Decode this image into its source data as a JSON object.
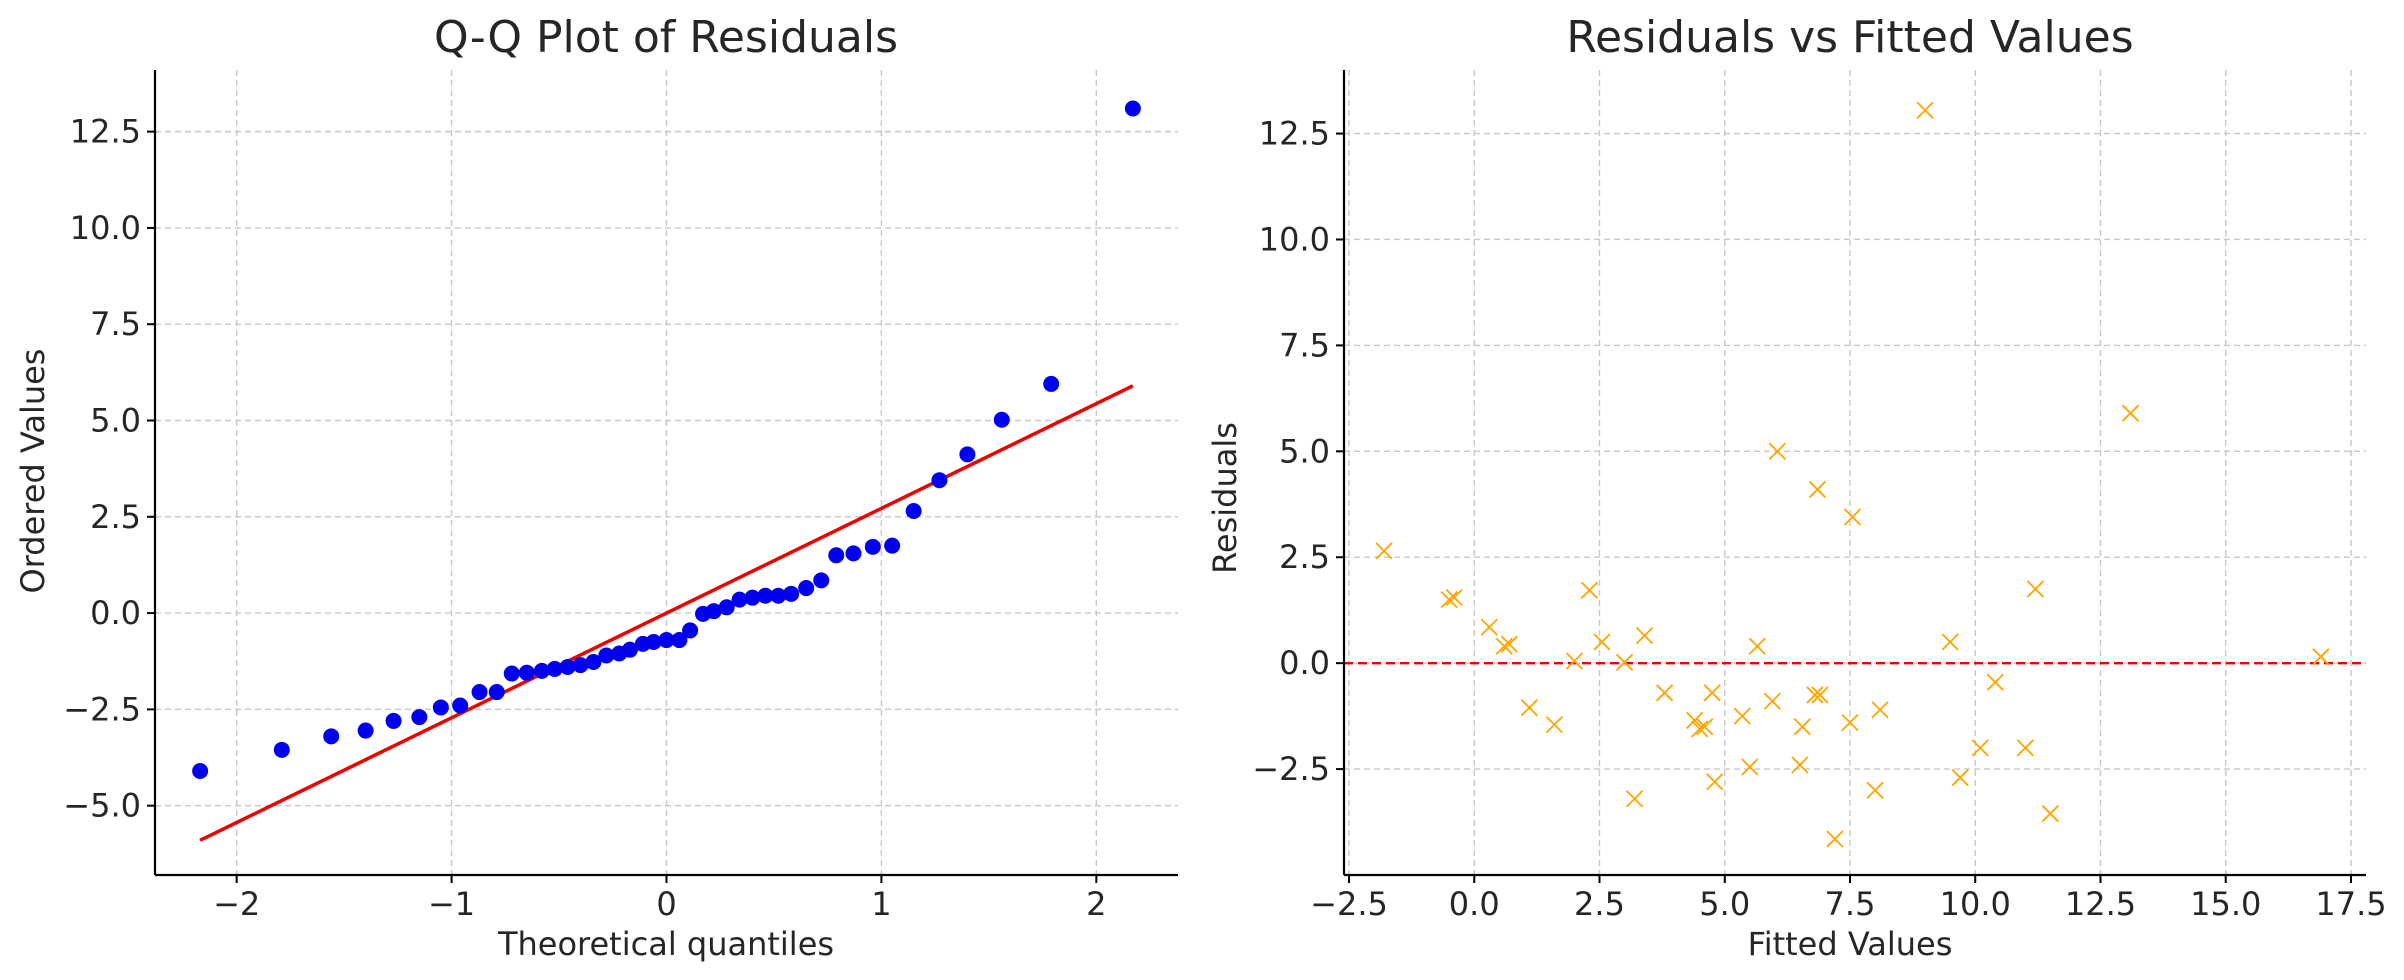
{
  "chart_data": [
    {
      "type": "scatter",
      "title": "Q-Q Plot of Residuals",
      "xlabel": "Theoretical quantiles",
      "ylabel": "Ordered Values",
      "xlim": [
        -2.38,
        2.38
      ],
      "ylim": [
        -6.8,
        14.1
      ],
      "grid": true,
      "x_ticks": [
        -2,
        -1,
        0,
        1,
        2
      ],
      "x_tick_labels": [
        "−2",
        "−1",
        "0",
        "1",
        "2"
      ],
      "y_ticks": [
        -5.0,
        -2.5,
        0.0,
        2.5,
        5.0,
        7.5,
        10.0,
        12.5
      ],
      "y_tick_labels": [
        "−5.0",
        "−2.5",
        "0.0",
        "2.5",
        "5.0",
        "7.5",
        "10.0",
        "12.5"
      ],
      "point_color": "#0000ee",
      "series": [
        {
          "marker": "circle",
          "points": [
            [
              -2.17,
              -4.1
            ],
            [
              -1.79,
              -3.55
            ],
            [
              -1.56,
              -3.2
            ],
            [
              -1.4,
              -3.05
            ],
            [
              -1.27,
              -2.8
            ],
            [
              -1.15,
              -2.7
            ],
            [
              -1.05,
              -2.45
            ],
            [
              -0.96,
              -2.4
            ],
            [
              -0.87,
              -2.05
            ],
            [
              -0.79,
              -2.05
            ],
            [
              -0.72,
              -1.57
            ],
            [
              -0.65,
              -1.55
            ],
            [
              -0.58,
              -1.5
            ],
            [
              -0.52,
              -1.45
            ],
            [
              -0.46,
              -1.4
            ],
            [
              -0.4,
              -1.35
            ],
            [
              -0.34,
              -1.27
            ],
            [
              -0.28,
              -1.1
            ],
            [
              -0.22,
              -1.05
            ],
            [
              -0.17,
              -0.95
            ],
            [
              -0.11,
              -0.8
            ],
            [
              -0.06,
              -0.75
            ],
            [
              0.0,
              -0.7
            ],
            [
              0.06,
              -0.7
            ],
            [
              0.11,
              -0.45
            ],
            [
              0.17,
              -0.02
            ],
            [
              0.22,
              0.05
            ],
            [
              0.28,
              0.15
            ],
            [
              0.34,
              0.35
            ],
            [
              0.4,
              0.4
            ],
            [
              0.46,
              0.45
            ],
            [
              0.52,
              0.45
            ],
            [
              0.58,
              0.5
            ],
            [
              0.65,
              0.65
            ],
            [
              0.72,
              0.85
            ],
            [
              0.79,
              1.5
            ],
            [
              0.87,
              1.55
            ],
            [
              0.96,
              1.72
            ],
            [
              1.05,
              1.75
            ],
            [
              1.15,
              2.65
            ],
            [
              1.27,
              3.45
            ],
            [
              1.4,
              4.12
            ],
            [
              1.56,
              5.02
            ],
            [
              1.79,
              5.95
            ],
            [
              2.17,
              13.1
            ]
          ]
        }
      ],
      "fit_line": {
        "color": "#ee0000",
        "x": [
          -2.17,
          2.17
        ],
        "y": [
          -5.9,
          5.9
        ]
      }
    },
    {
      "type": "scatter",
      "title": "Residuals vs Fitted Values",
      "xlabel": "Fitted Values",
      "ylabel": "Residuals",
      "xlim": [
        -2.6,
        17.8
      ],
      "ylim": [
        -5.0,
        14.0
      ],
      "grid": true,
      "x_ticks": [
        -2.5,
        0.0,
        2.5,
        5.0,
        7.5,
        10.0,
        12.5,
        15.0,
        17.5
      ],
      "x_tick_labels": [
        "−2.5",
        "0.0",
        "2.5",
        "5.0",
        "7.5",
        "10.0",
        "12.5",
        "15.0",
        "17.5"
      ],
      "y_ticks": [
        -2.5,
        0.0,
        2.5,
        5.0,
        7.5,
        10.0,
        12.5
      ],
      "y_tick_labels": [
        "−2.5",
        "0.0",
        "2.5",
        "5.0",
        "7.5",
        "10.0",
        "12.5"
      ],
      "point_color": "#ffa500",
      "series": [
        {
          "marker": "x",
          "points": [
            [
              -1.8,
              2.65
            ],
            [
              -0.5,
              1.5
            ],
            [
              -0.4,
              1.55
            ],
            [
              0.3,
              0.85
            ],
            [
              0.6,
              0.4
            ],
            [
              0.7,
              0.45
            ],
            [
              1.1,
              -1.05
            ],
            [
              1.6,
              -1.45
            ],
            [
              2.0,
              0.05
            ],
            [
              2.3,
              1.72
            ],
            [
              2.55,
              0.5
            ],
            [
              3.0,
              0.02
            ],
            [
              3.2,
              -3.2
            ],
            [
              3.4,
              0.65
            ],
            [
              3.8,
              -0.7
            ],
            [
              4.4,
              -1.35
            ],
            [
              4.5,
              -1.55
            ],
            [
              4.6,
              -1.5
            ],
            [
              4.75,
              -0.7
            ],
            [
              4.8,
              -2.8
            ],
            [
              5.35,
              -1.25
            ],
            [
              5.5,
              -2.45
            ],
            [
              5.65,
              0.4
            ],
            [
              5.95,
              -0.9
            ],
            [
              6.05,
              5.0
            ],
            [
              6.5,
              -2.4
            ],
            [
              6.55,
              -1.5
            ],
            [
              6.8,
              -0.75
            ],
            [
              6.85,
              4.1
            ],
            [
              6.9,
              -0.75
            ],
            [
              7.2,
              -4.15
            ],
            [
              7.5,
              -1.4
            ],
            [
              7.55,
              3.45
            ],
            [
              8.0,
              -3.0
            ],
            [
              8.1,
              -1.1
            ],
            [
              9.0,
              13.05
            ],
            [
              9.5,
              0.5
            ],
            [
              9.7,
              -2.7
            ],
            [
              10.1,
              -2.0
            ],
            [
              10.4,
              -0.45
            ],
            [
              11.0,
              -2.0
            ],
            [
              11.2,
              1.75
            ],
            [
              11.5,
              -3.55
            ],
            [
              13.1,
              5.9
            ],
            [
              16.9,
              0.15
            ]
          ]
        }
      ],
      "reference_line": {
        "y": 0.0,
        "color": "#ee0000",
        "style": "dashed"
      }
    }
  ]
}
